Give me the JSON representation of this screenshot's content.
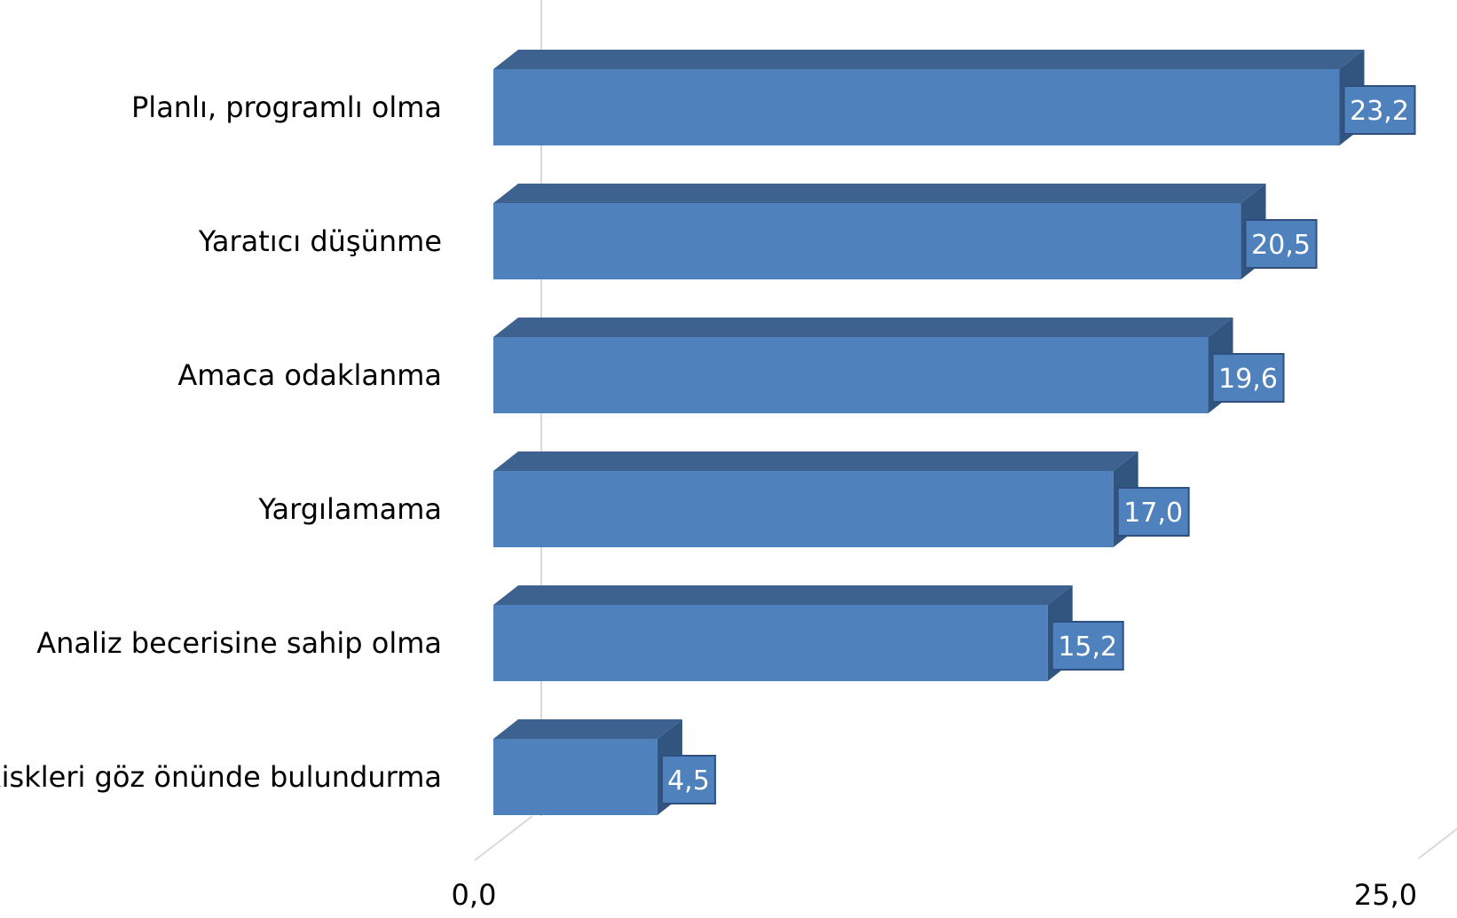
{
  "chart_data": {
    "type": "bar",
    "orientation": "horizontal",
    "style": "3d",
    "categories": [
      "Planlı, programlı olma",
      "Yaratıcı düşünme",
      "Amaca odaklanma",
      "Yargılamama",
      "Analiz becerisine sahip olma",
      "Riskleri göz önünde bulundurma"
    ],
    "values": [
      23.2,
      20.5,
      19.6,
      17.0,
      15.2,
      4.5
    ],
    "data_labels": [
      "23,2",
      "20,5",
      "19,6",
      "17,0",
      "15,2",
      "4,5"
    ],
    "xlim": [
      0,
      25
    ],
    "x_ticks": [
      "0,0",
      "25,0"
    ],
    "grid": true,
    "legend": "none",
    "colors": {
      "bar_front": "#4F81BD",
      "bar_top": "#3E6290",
      "bar_side": "#31557E",
      "label_box": "#4F81BD",
      "label_border": "#2E4F7F",
      "grid": "#D9D9D9"
    }
  }
}
